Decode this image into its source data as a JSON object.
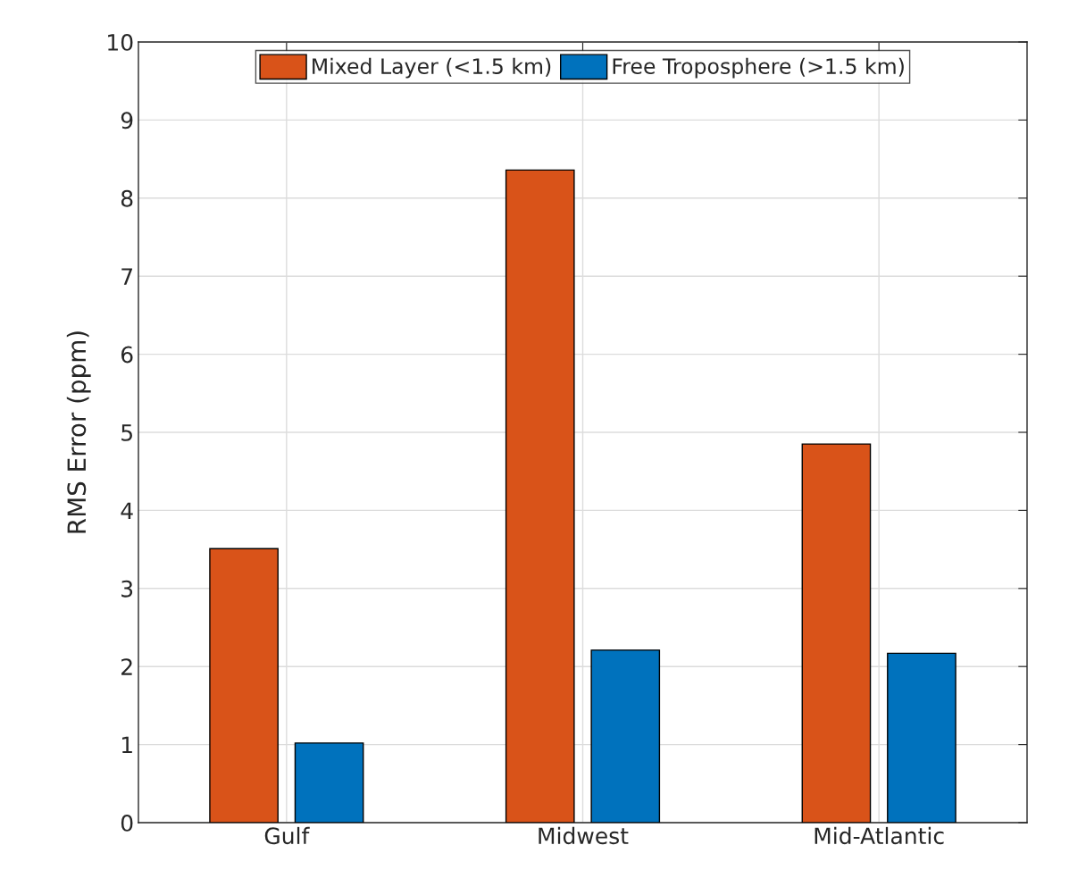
{
  "chart_data": {
    "type": "bar",
    "ylabel": "RMS Error (ppm)",
    "categories": [
      "Gulf",
      "Midwest",
      "Mid-Atlantic"
    ],
    "series": [
      {
        "name": "Mixed Layer (<1.5 km)",
        "color": "#d95319",
        "values": [
          3.51,
          8.36,
          4.85
        ]
      },
      {
        "name": "Free Troposphere (>1.5 km)",
        "color": "#0072bd",
        "values": [
          1.02,
          2.21,
          2.17
        ]
      }
    ],
    "ylim": [
      0,
      10
    ],
    "yticks": [
      0,
      1,
      2,
      3,
      4,
      5,
      6,
      7,
      8,
      9,
      10
    ],
    "grid": true,
    "legend": "top"
  }
}
